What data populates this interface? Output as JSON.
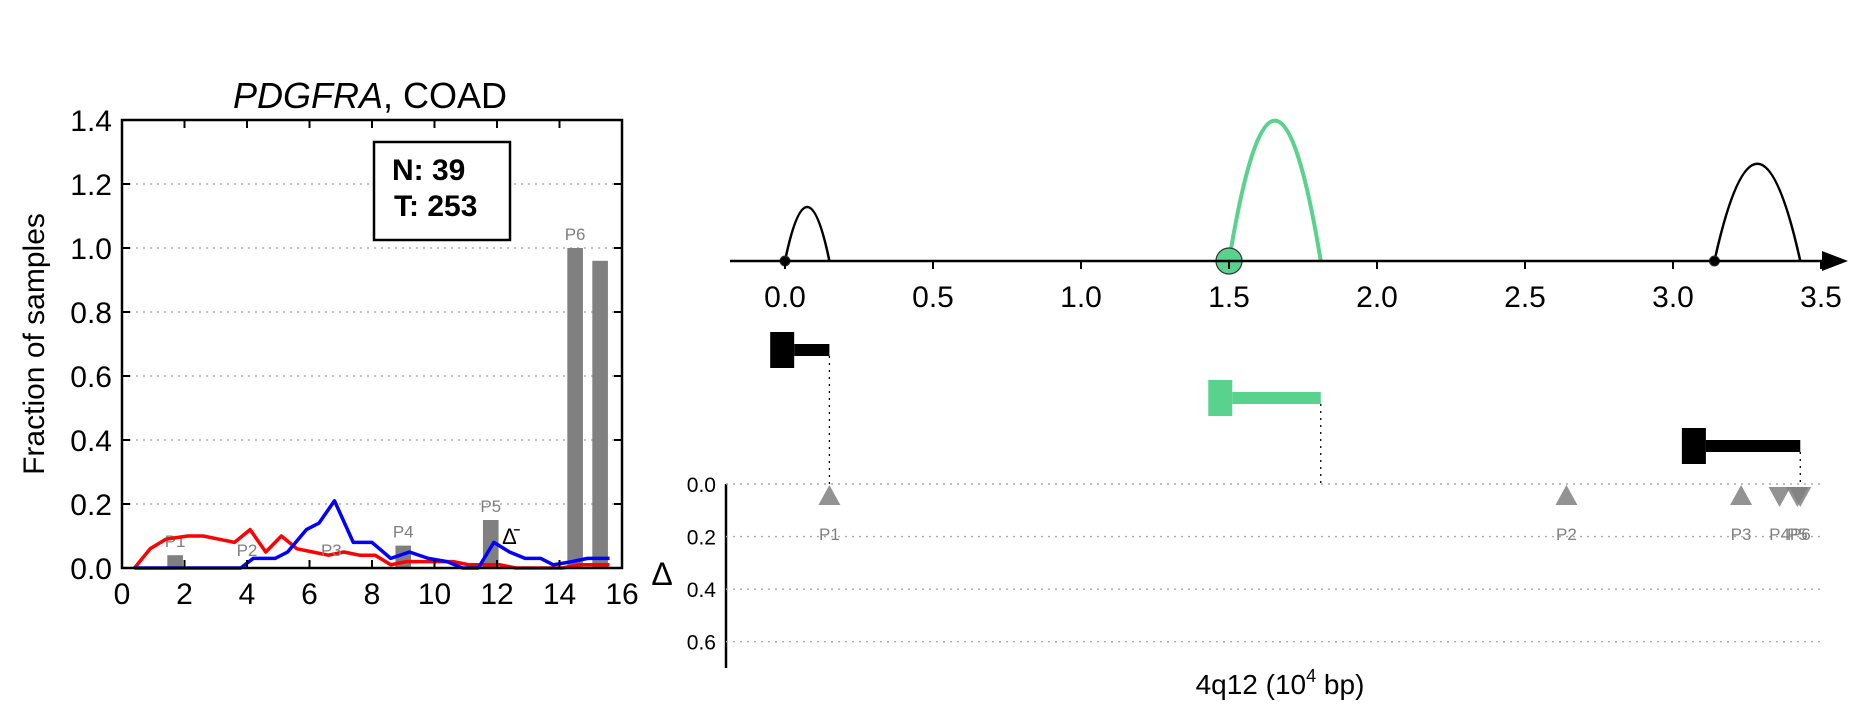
{
  "chart_data": [
    {
      "type": "bar",
      "title_gene": "PDGFRA",
      "title_rest": ", COAD",
      "ylabel": "Fraction of samples",
      "xlim": [
        0,
        16
      ],
      "ylim": [
        0,
        1.4
      ],
      "xticks": [
        "0",
        "2",
        "4",
        "6",
        "8",
        "10",
        "12",
        "14",
        "16"
      ],
      "yticks": [
        "0.0",
        "0.2",
        "0.4",
        "0.6",
        "0.8",
        "1.0",
        "1.2",
        "1.4"
      ],
      "grid": "y dotted",
      "info_box": {
        "n_line": "N: 39",
        "t_line": "T: 253"
      },
      "delta_label": "Δ̄",
      "delta_x": 12.4,
      "delta_y": 0.1,
      "bars": [
        {
          "x": 1.7,
          "height": 0.04,
          "label": "P1"
        },
        {
          "x": 9.0,
          "height": 0.07,
          "label": "P4"
        },
        {
          "x": 11.8,
          "height": 0.15,
          "label": "P5"
        },
        {
          "x": 14.5,
          "height": 1.0,
          "label": "P6"
        },
        {
          "x": 15.3,
          "height": 0.96,
          "label": ""
        }
      ],
      "point_labels": [
        {
          "label": "P2",
          "x": 4.0,
          "y": 0.05
        },
        {
          "label": "P3",
          "x": 6.7,
          "y": 0.05
        }
      ],
      "series": [
        {
          "color": "#ff0000",
          "x": [
            0.4,
            0.9,
            1.4,
            2.1,
            2.6,
            3.1,
            3.6,
            4.1,
            4.6,
            5.1,
            5.6,
            6.1,
            6.6,
            7.1,
            7.6,
            8.1,
            8.6,
            9.1,
            9.6,
            10.1,
            10.6,
            11.1,
            11.6,
            12.1,
            12.6,
            13.1,
            13.6,
            14.1,
            14.6,
            15.1,
            15.6
          ],
          "y": [
            0.0,
            0.06,
            0.09,
            0.1,
            0.1,
            0.09,
            0.08,
            0.12,
            0.05,
            0.1,
            0.06,
            0.05,
            0.04,
            0.05,
            0.04,
            0.04,
            0.01,
            0.02,
            0.02,
            0.02,
            0.02,
            0.01,
            0.01,
            0.01,
            0.0,
            0.0,
            0.0,
            0.0,
            0.01,
            0.01,
            0.01
          ]
        },
        {
          "color": "#0000ff",
          "x": [
            0.4,
            1.0,
            2.0,
            3.0,
            3.8,
            4.2,
            4.9,
            5.3,
            5.9,
            6.3,
            6.8,
            7.4,
            8.0,
            8.6,
            9.2,
            9.8,
            10.4,
            10.9,
            11.4,
            11.9,
            12.4,
            12.9,
            13.4,
            13.8,
            14.4,
            14.9,
            15.6
          ],
          "y": [
            0.0,
            0.0,
            0.0,
            0.0,
            0.0,
            0.03,
            0.03,
            0.05,
            0.12,
            0.14,
            0.21,
            0.08,
            0.08,
            0.03,
            0.05,
            0.03,
            0.02,
            0.0,
            0.0,
            0.08,
            0.05,
            0.03,
            0.03,
            0.01,
            0.02,
            0.03,
            0.03
          ]
        }
      ]
    },
    {
      "type": "diagram",
      "xlim": [
        -0.2,
        3.6
      ],
      "xticks": [
        "0.0",
        "0.5",
        "1.0",
        "1.5",
        "2.0",
        "2.5",
        "3.0",
        "3.5"
      ],
      "xlabel_base": "4q12 (10",
      "xlabel_sup": "4",
      "xlabel_tail": " bp)",
      "arcs": [
        {
          "start": 0.0,
          "end": 0.15,
          "height": 1.0,
          "color": "#000000",
          "dot_at": "start"
        },
        {
          "start": 1.5,
          "end": 1.81,
          "height": 2.6,
          "color": "#59d28d",
          "dot_at": "start"
        },
        {
          "start": 3.14,
          "end": 3.43,
          "height": 1.8,
          "color": "#000000",
          "dot_at": "start"
        }
      ],
      "transcripts": [
        {
          "tss": 0.15,
          "start": -0.05,
          "end": 0.15,
          "color": "#000000",
          "row": 0
        },
        {
          "tss": 1.81,
          "start": 1.43,
          "end": 1.81,
          "color": "#59d28d",
          "row": 1
        },
        {
          "tss": 3.43,
          "start": 3.03,
          "end": 3.43,
          "color": "#000000",
          "row": 2
        }
      ],
      "delta_axis_label": "Δ",
      "delta_ticks": [
        "0.0",
        "0.2",
        "0.4",
        "0.6"
      ],
      "delta_ylim": [
        0.0,
        0.7
      ],
      "promoters": [
        {
          "label": "P1",
          "pos": 0.15,
          "direction": "up"
        },
        {
          "label": "P2",
          "pos": 2.64,
          "direction": "up"
        },
        {
          "label": "P3",
          "pos": 3.23,
          "direction": "up"
        },
        {
          "label": "P4",
          "pos": 3.36,
          "direction": "down"
        },
        {
          "label": "P5",
          "pos": 3.42,
          "direction": "down"
        },
        {
          "label": "P6",
          "pos": 3.43,
          "direction": "down"
        }
      ],
      "colors": {
        "marker": "#808080",
        "accent": "#59d28d"
      }
    }
  ]
}
